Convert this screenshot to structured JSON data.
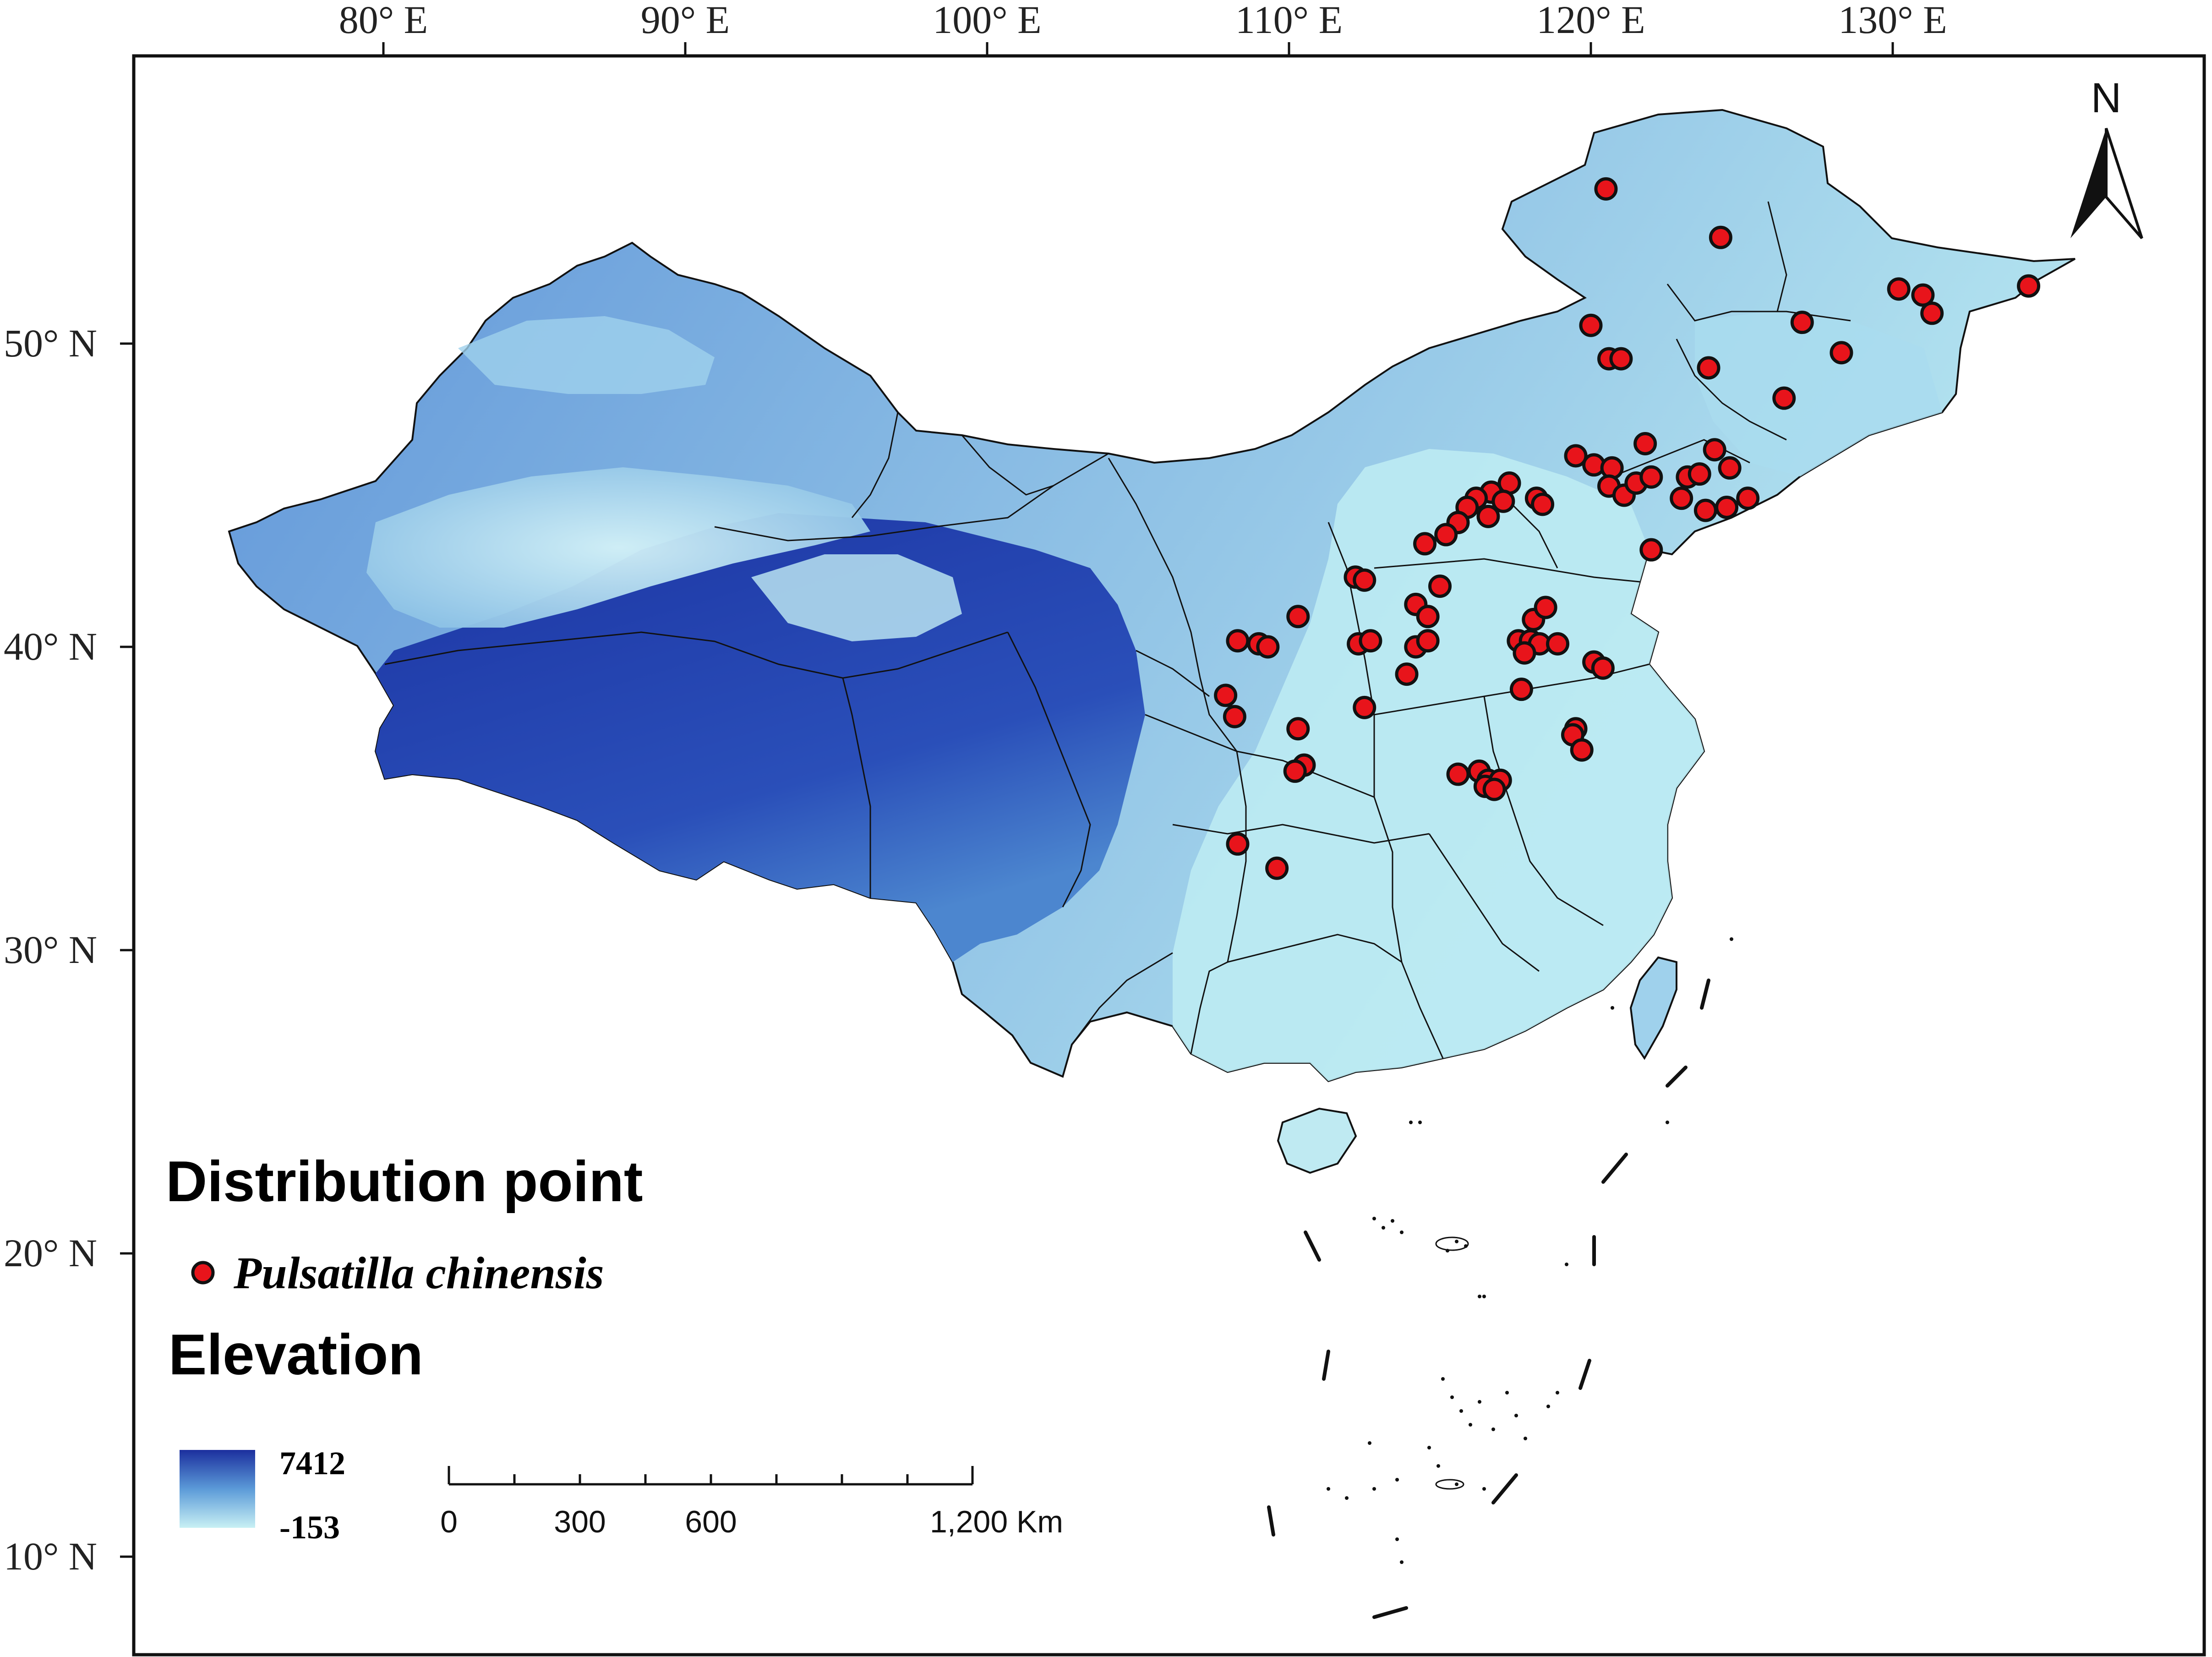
{
  "lon_labels": [
    "80° E",
    "90° E",
    "100° E",
    "110° E",
    "120° E",
    "130° E"
  ],
  "lat_labels": [
    "50° N",
    "40° N",
    "30° N",
    "20° N",
    "10° N"
  ],
  "north_arrow": {
    "label": "N",
    "icon": "north-arrow-icon"
  },
  "legend": {
    "distribution_title": "Distribution point",
    "species": "Pulsatilla chinensis",
    "elevation_title": "Elevation",
    "elevation_max": "7412",
    "elevation_min": "-153",
    "point_color": "#e8141b",
    "ramp_top_color": "#1c2f9e",
    "ramp_bottom_color": "#c8f0f4"
  },
  "scale_bar": {
    "labels": [
      "0",
      "300",
      "600",
      "1,200 Km"
    ]
  },
  "colors": {
    "high_elevation": "#1f3aa8",
    "mid_elevation": "#4a8fd6",
    "low_elevation": "#bfeaf2",
    "boundary": "#111111"
  },
  "distribution_points": [
    [
      120.5,
      55.1
    ],
    [
      124.3,
      53.5
    ],
    [
      130.2,
      51.8
    ],
    [
      131.0,
      51.6
    ],
    [
      131.3,
      51.0
    ],
    [
      134.5,
      51.9
    ],
    [
      120.0,
      50.6
    ],
    [
      120.6,
      49.5
    ],
    [
      121.0,
      49.5
    ],
    [
      127.0,
      50.7
    ],
    [
      128.3,
      49.7
    ],
    [
      123.9,
      49.2
    ],
    [
      126.4,
      48.2
    ],
    [
      119.5,
      46.3
    ],
    [
      120.1,
      46.0
    ],
    [
      120.7,
      45.9
    ],
    [
      120.6,
      45.3
    ],
    [
      121.1,
      45.0
    ],
    [
      121.5,
      45.4
    ],
    [
      122.0,
      45.6
    ],
    [
      121.8,
      46.7
    ],
    [
      123.2,
      45.6
    ],
    [
      123.6,
      45.7
    ],
    [
      124.1,
      46.5
    ],
    [
      124.6,
      45.9
    ],
    [
      123.0,
      44.9
    ],
    [
      123.8,
      44.5
    ],
    [
      124.5,
      44.6
    ],
    [
      125.2,
      44.9
    ],
    [
      122.0,
      43.2
    ],
    [
      116.7,
      45.1
    ],
    [
      117.3,
      45.4
    ],
    [
      116.2,
      44.9
    ],
    [
      117.1,
      44.8
    ],
    [
      116.6,
      44.3
    ],
    [
      115.9,
      44.6
    ],
    [
      115.6,
      44.1
    ],
    [
      118.2,
      44.9
    ],
    [
      115.2,
      43.7
    ],
    [
      114.5,
      43.4
    ],
    [
      118.4,
      44.7
    ],
    [
      112.2,
      42.3
    ],
    [
      112.5,
      42.2
    ],
    [
      115.0,
      42.0
    ],
    [
      114.2,
      41.4
    ],
    [
      114.6,
      41.0
    ],
    [
      110.3,
      41.0
    ],
    [
      108.3,
      40.2
    ],
    [
      109.0,
      40.1
    ],
    [
      109.3,
      40.0
    ],
    [
      112.3,
      40.1
    ],
    [
      112.7,
      40.2
    ],
    [
      114.2,
      40.0
    ],
    [
      114.6,
      40.2
    ],
    [
      113.9,
      39.1
    ],
    [
      117.6,
      40.2
    ],
    [
      118.0,
      40.2
    ],
    [
      118.1,
      40.9
    ],
    [
      118.5,
      41.3
    ],
    [
      118.3,
      40.1
    ],
    [
      118.9,
      40.1
    ],
    [
      117.8,
      39.8
    ],
    [
      120.1,
      39.5
    ],
    [
      120.4,
      39.3
    ],
    [
      107.9,
      38.4
    ],
    [
      108.2,
      37.7
    ],
    [
      112.5,
      38.0
    ],
    [
      110.3,
      37.3
    ],
    [
      117.7,
      38.6
    ],
    [
      119.5,
      37.3
    ],
    [
      119.4,
      37.1
    ],
    [
      119.7,
      36.6
    ],
    [
      110.5,
      36.1
    ],
    [
      110.2,
      35.9
    ],
    [
      115.6,
      35.8
    ],
    [
      116.3,
      35.9
    ],
    [
      116.6,
      35.6
    ],
    [
      116.5,
      35.4
    ],
    [
      117.0,
      35.6
    ],
    [
      116.8,
      35.3
    ],
    [
      109.6,
      32.7
    ],
    [
      108.3,
      33.5
    ]
  ]
}
